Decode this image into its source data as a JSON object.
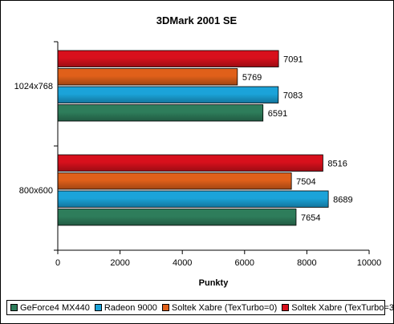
{
  "chart_data": {
    "type": "bar",
    "orientation": "horizontal",
    "title": "3DMark 2001 SE",
    "xlabel": "Punkty",
    "ylabel": "",
    "xlim": [
      0,
      10000
    ],
    "xticks": [
      0,
      2000,
      4000,
      6000,
      8000,
      10000
    ],
    "grid": false,
    "legend_position": "bottom",
    "categories": [
      "1024x768",
      "800x600"
    ],
    "series": [
      {
        "name": "GeForce4 MX440",
        "color": "#2e7d5b",
        "values": [
          6591,
          7654
        ]
      },
      {
        "name": "Radeon 9000",
        "color": "#1ba3d9",
        "values": [
          7083,
          8689
        ]
      },
      {
        "name": "Soltek Xabre (TexTurbo=0)",
        "color": "#e0601a",
        "values": [
          5769,
          7504
        ]
      },
      {
        "name": "Soltek Xabre (TexTurbo=3)",
        "color": "#d8101c",
        "values": [
          7091,
          8516
        ]
      }
    ]
  }
}
